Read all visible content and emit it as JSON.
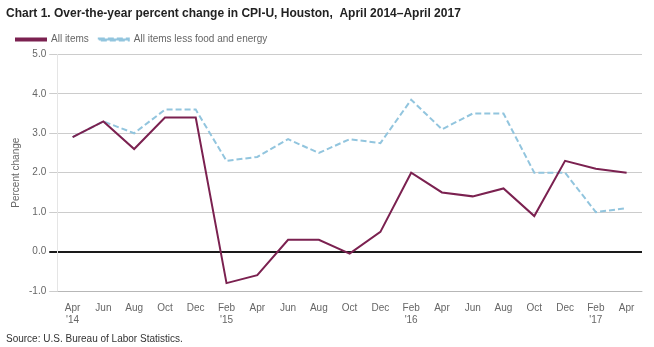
{
  "chart_data": {
    "type": "line",
    "title": "Chart 1. Over-the-year percent change in CPI-U, Houston,  April 2014–April 2017",
    "y_label": "Percent change",
    "annotations": [
      "Source: U.S. Bureau of Labor Statistics."
    ],
    "categories": [
      "Apr\n'14",
      "Jun",
      "Aug",
      "Oct",
      "Dec",
      "Feb\n'15",
      "Apr",
      "Jun",
      "Aug",
      "Oct",
      "Dec",
      "Feb\n'16",
      "Apr",
      "Jun",
      "Aug",
      "Oct",
      "Dec",
      "Feb\n'17",
      "Apr"
    ],
    "series": [
      {
        "name": "All items",
        "color": "#7b2150",
        "line_style": "solid",
        "values": [
          2.9,
          3.3,
          2.6,
          3.4,
          3.4,
          -0.8,
          -0.6,
          0.3,
          0.3,
          -0.05,
          0.5,
          2.0,
          1.5,
          1.4,
          1.6,
          0.9,
          2.3,
          2.1,
          2.0
        ]
      },
      {
        "name": "All items less food and energy",
        "color": "#92c5de",
        "line_style": "dashed",
        "values": [
          2.9,
          3.3,
          3.0,
          3.6,
          3.6,
          2.3,
          2.4,
          2.85,
          2.5,
          2.85,
          2.75,
          3.85,
          3.1,
          3.5,
          3.5,
          2.0,
          2.0,
          1.0,
          1.1
        ]
      }
    ],
    "ylim": [
      -1.0,
      5.0
    ],
    "yticks": [
      {
        "value": -1.0,
        "label": "-1.0"
      },
      {
        "value": 0.0,
        "label": "0.0"
      },
      {
        "value": 1.0,
        "label": "1.0"
      },
      {
        "value": 2.0,
        "label": "2.0"
      },
      {
        "value": 3.0,
        "label": "3.0"
      },
      {
        "value": 4.0,
        "label": "4.0"
      },
      {
        "value": 5.0,
        "label": "5.0"
      }
    ],
    "grid": true,
    "legend": "upper left"
  }
}
